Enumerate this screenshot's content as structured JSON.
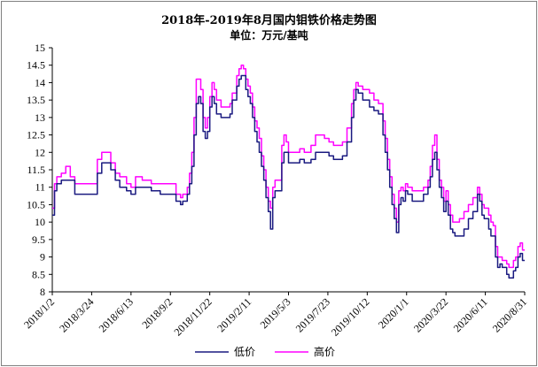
{
  "chart_data": {
    "type": "line",
    "title": "2018年-2019年8月国内钼铁价格走势图",
    "subtitle": "单位：万元/基吨",
    "ylim": [
      8,
      15
    ],
    "y_ticks": [
      "8",
      "8.5",
      "9",
      "9.5",
      "10",
      "10.5",
      "11",
      "11.5",
      "12",
      "12.5",
      "13",
      "13.5",
      "14",
      "14.5",
      "15"
    ],
    "x_ticks": [
      "2018/1/2",
      "2018/3/24",
      "2018/6/13",
      "2018/9/2",
      "2018/11/22",
      "2019/2/11",
      "2019/5/3",
      "2019/7/23",
      "2019/10/12",
      "2020/1/1",
      "2020/3/22",
      "2020/6/11",
      "2020/8/31"
    ],
    "legend_position": "bottom",
    "grid": false,
    "series": [
      {
        "name": "低价",
        "color": "#1a1a80",
        "points": [
          [
            0,
            10.2
          ],
          [
            1,
            10.9
          ],
          [
            2,
            11.1
          ],
          [
            4,
            11.2
          ],
          [
            6,
            11.2
          ],
          [
            8,
            11.2
          ],
          [
            10,
            10.8
          ],
          [
            15,
            10.8
          ],
          [
            18,
            10.8
          ],
          [
            20,
            11.4
          ],
          [
            22,
            11.7
          ],
          [
            24,
            11.7
          ],
          [
            26,
            11.5
          ],
          [
            28,
            11.2
          ],
          [
            30,
            11.0
          ],
          [
            33,
            10.9
          ],
          [
            35,
            10.8
          ],
          [
            37,
            11.0
          ],
          [
            40,
            11.0
          ],
          [
            44,
            10.9
          ],
          [
            48,
            10.8
          ],
          [
            52,
            10.8
          ],
          [
            55,
            10.6
          ],
          [
            57,
            10.5
          ],
          [
            58,
            10.6
          ],
          [
            60,
            10.8
          ],
          [
            61,
            11.1
          ],
          [
            62,
            11.6
          ],
          [
            63,
            12.5
          ],
          [
            64,
            13.4
          ],
          [
            65,
            13.6
          ],
          [
            66,
            13.4
          ],
          [
            67,
            12.6
          ],
          [
            68,
            12.4
          ],
          [
            69,
            12.6
          ],
          [
            70,
            13.3
          ],
          [
            71,
            13.6
          ],
          [
            72,
            13.4
          ],
          [
            73,
            13.1
          ],
          [
            75,
            13.0
          ],
          [
            77,
            13.0
          ],
          [
            79,
            13.1
          ],
          [
            80,
            13.5
          ],
          [
            82,
            13.9
          ],
          [
            83,
            14.1
          ],
          [
            84,
            14.2
          ],
          [
            85,
            14.2
          ],
          [
            86,
            13.8
          ],
          [
            87,
            13.6
          ],
          [
            88,
            13.4
          ],
          [
            89,
            13.0
          ],
          [
            90,
            12.6
          ],
          [
            91,
            12.3
          ],
          [
            92,
            12.0
          ],
          [
            93,
            11.6
          ],
          [
            94,
            11.2
          ],
          [
            95,
            10.7
          ],
          [
            96,
            10.3
          ],
          [
            97,
            9.8
          ],
          [
            98,
            10.7
          ],
          [
            99,
            10.9
          ],
          [
            100,
            10.9
          ],
          [
            101,
            10.9
          ],
          [
            102,
            11.7
          ],
          [
            103,
            12.0
          ],
          [
            104,
            12.0
          ],
          [
            105,
            11.7
          ],
          [
            108,
            11.7
          ],
          [
            110,
            11.8
          ],
          [
            112,
            11.7
          ],
          [
            115,
            11.8
          ],
          [
            117,
            12.0
          ],
          [
            119,
            12.0
          ],
          [
            121,
            12.0
          ],
          [
            123,
            11.9
          ],
          [
            125,
            11.8
          ],
          [
            127,
            11.8
          ],
          [
            129,
            11.9
          ],
          [
            131,
            12.3
          ],
          [
            133,
            13.0
          ],
          [
            134,
            13.5
          ],
          [
            135,
            13.8
          ],
          [
            136,
            13.7
          ],
          [
            138,
            13.5
          ],
          [
            141,
            13.3
          ],
          [
            143,
            13.2
          ],
          [
            145,
            13.1
          ],
          [
            147,
            12.5
          ],
          [
            148,
            12.0
          ],
          [
            149,
            11.5
          ],
          [
            150,
            11.0
          ],
          [
            151,
            10.5
          ],
          [
            152,
            10.1
          ],
          [
            153,
            9.7
          ],
          [
            154,
            10.5
          ],
          [
            155,
            10.7
          ],
          [
            156,
            10.6
          ],
          [
            157,
            10.9
          ],
          [
            158,
            10.8
          ],
          [
            160,
            10.6
          ],
          [
            162,
            10.6
          ],
          [
            165,
            10.8
          ],
          [
            167,
            11.0
          ],
          [
            168,
            11.3
          ],
          [
            169,
            11.8
          ],
          [
            170,
            12.0
          ],
          [
            171,
            11.5
          ],
          [
            172,
            11.0
          ],
          [
            173,
            10.7
          ],
          [
            174,
            10.3
          ],
          [
            175,
            10.6
          ],
          [
            176,
            10.2
          ],
          [
            177,
            9.8
          ],
          [
            178,
            9.7
          ],
          [
            179,
            9.6
          ],
          [
            181,
            9.6
          ],
          [
            183,
            9.8
          ],
          [
            185,
            10.1
          ],
          [
            187,
            10.3
          ],
          [
            189,
            10.8
          ],
          [
            190,
            10.6
          ],
          [
            191,
            10.2
          ],
          [
            192,
            10.1
          ],
          [
            193,
            10.1
          ],
          [
            194,
            9.8
          ],
          [
            195,
            9.6
          ],
          [
            196,
            9.6
          ],
          [
            197,
            9.0
          ],
          [
            198,
            8.7
          ],
          [
            199,
            8.8
          ],
          [
            200,
            8.7
          ],
          [
            201,
            8.7
          ],
          [
            202,
            8.5
          ],
          [
            203,
            8.4
          ],
          [
            204,
            8.4
          ],
          [
            205,
            8.6
          ],
          [
            206,
            8.7
          ],
          [
            207,
            9.0
          ],
          [
            208,
            9.1
          ],
          [
            209,
            8.9
          ],
          [
            210,
            8.9
          ]
        ]
      },
      {
        "name": "高价",
        "color": "#ff00ff",
        "points": [
          [
            0,
            10.4
          ],
          [
            1,
            11.1
          ],
          [
            2,
            11.3
          ],
          [
            4,
            11.4
          ],
          [
            6,
            11.6
          ],
          [
            8,
            11.3
          ],
          [
            10,
            11.1
          ],
          [
            15,
            11.1
          ],
          [
            18,
            11.1
          ],
          [
            20,
            11.8
          ],
          [
            22,
            12.0
          ],
          [
            24,
            12.0
          ],
          [
            26,
            11.7
          ],
          [
            28,
            11.4
          ],
          [
            30,
            11.3
          ],
          [
            33,
            11.1
          ],
          [
            35,
            11.0
          ],
          [
            37,
            11.3
          ],
          [
            40,
            11.2
          ],
          [
            44,
            11.1
          ],
          [
            48,
            11.1
          ],
          [
            52,
            11.1
          ],
          [
            55,
            10.8
          ],
          [
            57,
            10.7
          ],
          [
            58,
            10.8
          ],
          [
            60,
            11.0
          ],
          [
            61,
            11.4
          ],
          [
            62,
            12.0
          ],
          [
            63,
            13.0
          ],
          [
            64,
            14.1
          ],
          [
            65,
            14.1
          ],
          [
            66,
            13.8
          ],
          [
            67,
            13.0
          ],
          [
            68,
            12.7
          ],
          [
            69,
            13.0
          ],
          [
            70,
            13.6
          ],
          [
            71,
            14.0
          ],
          [
            72,
            13.8
          ],
          [
            73,
            13.5
          ],
          [
            75,
            13.3
          ],
          [
            77,
            13.3
          ],
          [
            79,
            13.4
          ],
          [
            80,
            13.7
          ],
          [
            82,
            14.2
          ],
          [
            83,
            14.4
          ],
          [
            84,
            14.5
          ],
          [
            85,
            14.4
          ],
          [
            86,
            14.1
          ],
          [
            87,
            13.9
          ],
          [
            88,
            13.7
          ],
          [
            89,
            13.3
          ],
          [
            90,
            12.9
          ],
          [
            91,
            12.7
          ],
          [
            92,
            12.4
          ],
          [
            93,
            11.9
          ],
          [
            94,
            11.5
          ],
          [
            95,
            11.0
          ],
          [
            96,
            10.6
          ],
          [
            97,
            10.4
          ],
          [
            98,
            11.0
          ],
          [
            99,
            11.2
          ],
          [
            100,
            11.2
          ],
          [
            101,
            11.2
          ],
          [
            102,
            12.2
          ],
          [
            103,
            12.5
          ],
          [
            104,
            12.3
          ],
          [
            105,
            12.0
          ],
          [
            108,
            12.0
          ],
          [
            110,
            12.1
          ],
          [
            112,
            12.0
          ],
          [
            115,
            12.2
          ],
          [
            117,
            12.5
          ],
          [
            119,
            12.5
          ],
          [
            121,
            12.4
          ],
          [
            123,
            12.3
          ],
          [
            125,
            12.2
          ],
          [
            127,
            12.2
          ],
          [
            129,
            12.3
          ],
          [
            131,
            12.7
          ],
          [
            133,
            13.4
          ],
          [
            134,
            13.8
          ],
          [
            135,
            14.0
          ],
          [
            136,
            13.9
          ],
          [
            138,
            13.8
          ],
          [
            141,
            13.7
          ],
          [
            143,
            13.5
          ],
          [
            145,
            13.4
          ],
          [
            147,
            12.9
          ],
          [
            148,
            12.4
          ],
          [
            149,
            11.8
          ],
          [
            150,
            11.3
          ],
          [
            151,
            10.8
          ],
          [
            152,
            10.4
          ],
          [
            153,
            10.0
          ],
          [
            154,
            10.9
          ],
          [
            155,
            11.0
          ],
          [
            156,
            10.9
          ],
          [
            157,
            11.1
          ],
          [
            158,
            11.0
          ],
          [
            160,
            10.9
          ],
          [
            162,
            10.9
          ],
          [
            165,
            11.0
          ],
          [
            167,
            11.2
          ],
          [
            168,
            11.6
          ],
          [
            169,
            12.2
          ],
          [
            170,
            12.5
          ],
          [
            171,
            11.8
          ],
          [
            172,
            11.2
          ],
          [
            173,
            11.0
          ],
          [
            174,
            10.6
          ],
          [
            175,
            10.9
          ],
          [
            176,
            10.5
          ],
          [
            177,
            10.2
          ],
          [
            178,
            10.0
          ],
          [
            179,
            10.0
          ],
          [
            181,
            10.1
          ],
          [
            183,
            10.3
          ],
          [
            185,
            10.5
          ],
          [
            187,
            10.7
          ],
          [
            189,
            11.0
          ],
          [
            190,
            10.8
          ],
          [
            191,
            10.5
          ],
          [
            192,
            10.4
          ],
          [
            193,
            10.4
          ],
          [
            194,
            10.2
          ],
          [
            195,
            10.0
          ],
          [
            196,
            9.9
          ],
          [
            197,
            9.3
          ],
          [
            198,
            9.0
          ],
          [
            199,
            9.0
          ],
          [
            200,
            8.9
          ],
          [
            201,
            8.9
          ],
          [
            202,
            8.8
          ],
          [
            203,
            8.7
          ],
          [
            204,
            8.7
          ],
          [
            205,
            8.9
          ],
          [
            206,
            9.0
          ],
          [
            207,
            9.3
          ],
          [
            208,
            9.4
          ],
          [
            209,
            9.2
          ],
          [
            210,
            9.2
          ]
        ]
      }
    ]
  }
}
